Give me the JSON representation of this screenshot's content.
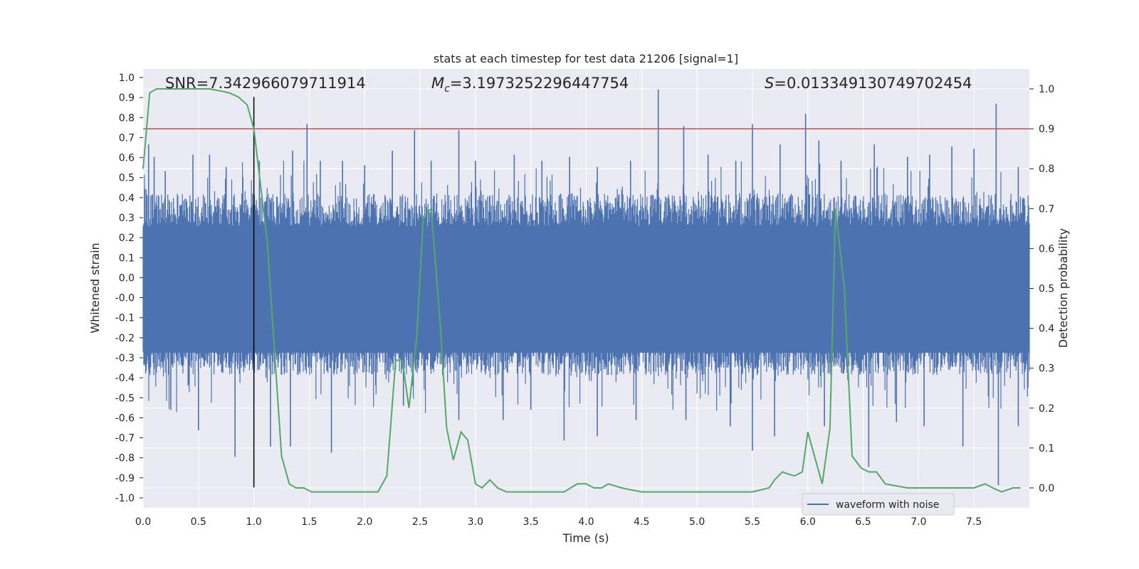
{
  "chart_data": {
    "type": "line",
    "title": "stats at each timestep for test data 21206 [signal=1]",
    "xlabel": "Time (s)",
    "ylabel_left": "Whitened strain",
    "ylabel_right": "Detection probability",
    "xlim": [
      0.0,
      8.0
    ],
    "ylim_left": [
      -1.1,
      1.05
    ],
    "ylim_right": [
      -0.05,
      1.05
    ],
    "x_ticks": [
      "0.0",
      "0.5",
      "1.0",
      "1.5",
      "2.0",
      "2.5",
      "3.0",
      "3.5",
      "4.0",
      "4.5",
      "5.0",
      "5.5",
      "6.0",
      "6.5",
      "7.0",
      "7.5"
    ],
    "y_left_ticks": [
      "1.0",
      "0.9",
      "0.8",
      "0.7",
      "0.6",
      "0.5",
      "0.4",
      "0.3",
      "0.2",
      "0.1",
      "0.0",
      "-0.0",
      "-0.1",
      "-0.2",
      "-0.3",
      "-0.4",
      "-0.5",
      "-0.6",
      "-0.7",
      "-0.8",
      "-0.9",
      "-1.0"
    ],
    "y_right_ticks": [
      "1.0",
      "0.9",
      "0.8",
      "0.7",
      "0.6",
      "0.5",
      "0.4",
      "0.3",
      "0.2",
      "0.1",
      "0.0"
    ],
    "grid": true,
    "legend_position": "lower-right",
    "annotations": {
      "snr": "SNR=7.342966079711914",
      "mc_prefix": "M",
      "mc_sub": "c",
      "mc_value": "=3.1973252296447754",
      "s_prefix": "S",
      "s_value": "=0.013349130749702454"
    },
    "series": [
      {
        "name": "waveform with noise",
        "axis": "left",
        "color": "#4c72b0",
        "note": "dense noise band roughly within ±0.4 with spikes",
        "peaks": [
          [
            0.05,
            0.68
          ],
          [
            0.1,
            0.62
          ],
          [
            0.2,
            0.55
          ],
          [
            0.45,
            0.63
          ],
          [
            0.6,
            0.63
          ],
          [
            0.75,
            0.57
          ],
          [
            0.9,
            0.52
          ],
          [
            1.05,
            0.6
          ],
          [
            1.35,
            0.65
          ],
          [
            1.48,
            0.78
          ],
          [
            1.6,
            0.6
          ],
          [
            1.8,
            0.6
          ],
          [
            2.0,
            0.58
          ],
          [
            2.25,
            0.65
          ],
          [
            2.45,
            0.75
          ],
          [
            2.6,
            0.6
          ],
          [
            2.85,
            0.75
          ],
          [
            3.0,
            0.6
          ],
          [
            3.35,
            0.63
          ],
          [
            3.6,
            0.6
          ],
          [
            3.85,
            0.62
          ],
          [
            4.1,
            0.57
          ],
          [
            4.4,
            0.6
          ],
          [
            4.65,
            0.95
          ],
          [
            4.88,
            0.77
          ],
          [
            5.1,
            0.63
          ],
          [
            5.35,
            0.6
          ],
          [
            5.5,
            0.78
          ],
          [
            5.75,
            0.68
          ],
          [
            5.98,
            0.83
          ],
          [
            6.1,
            0.7
          ],
          [
            6.3,
            0.6
          ],
          [
            6.6,
            0.68
          ],
          [
            6.9,
            0.62
          ],
          [
            7.1,
            0.63
          ],
          [
            7.3,
            0.67
          ],
          [
            7.5,
            0.66
          ],
          [
            7.7,
            0.88
          ],
          [
            7.9,
            0.57
          ]
        ],
        "troughs": [
          [
            0.05,
            -0.42
          ],
          [
            0.25,
            -0.62
          ],
          [
            0.5,
            -0.72
          ],
          [
            0.83,
            -0.85
          ],
          [
            1.15,
            -0.8
          ],
          [
            1.33,
            -0.8
          ],
          [
            1.7,
            -0.83
          ],
          [
            2.1,
            -0.5
          ],
          [
            2.35,
            -0.6
          ],
          [
            2.85,
            -0.67
          ],
          [
            3.25,
            -0.67
          ],
          [
            3.5,
            -0.62
          ],
          [
            3.8,
            -0.77
          ],
          [
            4.1,
            -0.75
          ],
          [
            4.45,
            -0.67
          ],
          [
            4.9,
            -0.67
          ],
          [
            5.3,
            -0.7
          ],
          [
            5.5,
            -0.82
          ],
          [
            5.7,
            -0.75
          ],
          [
            6.15,
            -0.7
          ],
          [
            6.55,
            -0.9
          ],
          [
            6.8,
            -0.68
          ],
          [
            7.05,
            -0.7
          ],
          [
            7.4,
            -0.8
          ],
          [
            7.72,
            -0.99
          ],
          [
            7.9,
            -0.7
          ]
        ]
      },
      {
        "name": "",
        "axis": "right",
        "color": "#55a868",
        "x": [
          0.0,
          0.06,
          0.12,
          0.2,
          0.3,
          0.4,
          0.5,
          0.6,
          0.7,
          0.78,
          0.86,
          0.94,
          1.0,
          1.12,
          1.25,
          1.32,
          1.38,
          1.45,
          1.52,
          1.6,
          1.7,
          1.85,
          2.0,
          2.12,
          2.2,
          2.28,
          2.34,
          2.4,
          2.47,
          2.53,
          2.6,
          2.68,
          2.74,
          2.8,
          2.87,
          2.93,
          3.0,
          3.06,
          3.13,
          3.2,
          3.28,
          3.4,
          3.6,
          3.8,
          3.92,
          4.0,
          4.07,
          4.14,
          4.2,
          4.32,
          4.5,
          4.7,
          5.0,
          5.3,
          5.5,
          5.65,
          5.7,
          5.77,
          5.82,
          5.88,
          5.95,
          6.0,
          6.07,
          6.13,
          6.2,
          6.25,
          6.33,
          6.4,
          6.48,
          6.55,
          6.62,
          6.7,
          6.9,
          7.1,
          7.3,
          7.5,
          7.6,
          7.67,
          7.75,
          7.85,
          7.92
        ],
        "y": [
          0.8,
          0.99,
          1.0,
          1.0,
          1.0,
          1.0,
          1.0,
          1.0,
          0.995,
          0.99,
          0.98,
          0.96,
          0.9,
          0.62,
          0.08,
          0.01,
          0.0,
          0.0,
          -0.01,
          -0.01,
          -0.01,
          -0.01,
          -0.01,
          -0.01,
          0.03,
          0.32,
          0.32,
          0.2,
          0.38,
          0.68,
          0.7,
          0.42,
          0.15,
          0.07,
          0.14,
          0.12,
          0.01,
          0.0,
          0.02,
          0.0,
          -0.01,
          -0.01,
          -0.01,
          -0.01,
          0.01,
          0.01,
          0.0,
          0.0,
          0.01,
          0.0,
          -0.01,
          -0.01,
          -0.01,
          -0.01,
          -0.01,
          0.0,
          0.02,
          0.04,
          0.035,
          0.03,
          0.04,
          0.14,
          0.07,
          0.01,
          0.15,
          0.7,
          0.5,
          0.08,
          0.05,
          0.04,
          0.04,
          0.01,
          0.0,
          0.0,
          0.0,
          0.0,
          0.01,
          0.0,
          -0.01,
          0.0,
          0.0
        ]
      }
    ],
    "threshold": {
      "axis": "right",
      "value": 0.9,
      "color": "#c44e52"
    },
    "marker_line": {
      "x": 1.0,
      "y_from": -1.0,
      "y_to": 0.98,
      "color": "#000000"
    }
  }
}
